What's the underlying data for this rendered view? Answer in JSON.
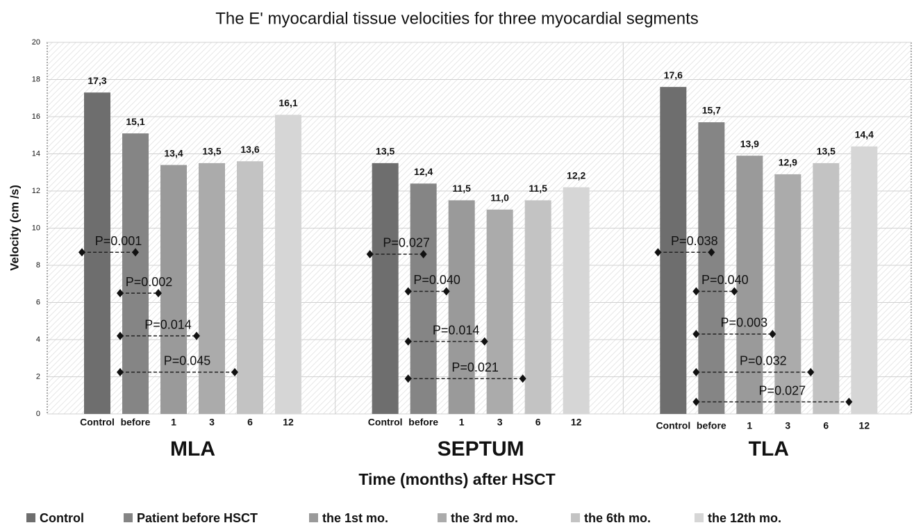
{
  "chart_data": {
    "type": "bar",
    "title": "The E' myocardial tissue velocities for three myocardial segments",
    "y_label": "Velocity (cm /s)",
    "x_label": "Time (months) after HSCT",
    "categories": [
      "MLA",
      "SEPTUM",
      "TLA"
    ],
    "bar_labels": [
      "Control",
      "before",
      "1",
      "3",
      "6",
      "12"
    ],
    "series": [
      {
        "name": "Control",
        "color": "#6e6e6e",
        "values": [
          17.3,
          13.5,
          17.6
        ],
        "value_labels": [
          "17,3",
          "13,5",
          "17,6"
        ]
      },
      {
        "name": "Patient before HSCT",
        "color": "#858585",
        "values": [
          15.1,
          12.4,
          15.7
        ],
        "value_labels": [
          "15,1",
          "12,4",
          "15,7"
        ]
      },
      {
        "name": "the 1st mo.",
        "color": "#9a9a9a",
        "values": [
          13.4,
          11.5,
          13.9
        ],
        "value_labels": [
          "13,4",
          "11,5",
          "13,9"
        ]
      },
      {
        "name": "the 3rd mo.",
        "color": "#ababab",
        "values": [
          13.5,
          11.0,
          12.9
        ],
        "value_labels": [
          "13,5",
          "11,0",
          "12,9"
        ]
      },
      {
        "name": "the 6th mo.",
        "color": "#c3c3c3",
        "values": [
          13.6,
          11.5,
          13.5
        ],
        "value_labels": [
          "13,6",
          "11,5",
          "13,5"
        ]
      },
      {
        "name": "the 12th mo.",
        "color": "#d6d6d6",
        "values": [
          16.1,
          12.2,
          14.4
        ],
        "value_labels": [
          "16,1",
          "12,2",
          "14,4"
        ]
      }
    ],
    "annotations": [
      {
        "text": "P=0.001",
        "group": "MLA",
        "from": "Control",
        "to": "before",
        "y": 8.7
      },
      {
        "text": "P=0.002",
        "group": "MLA",
        "from": "before",
        "to": "1",
        "y": 6.5
      },
      {
        "text": "P=0.014",
        "group": "MLA",
        "from": "before",
        "to": "3",
        "y": 4.2
      },
      {
        "text": "P=0.045",
        "group": "MLA",
        "from": "before",
        "to": "6",
        "y": 2.25
      },
      {
        "text": "P=0.027",
        "group": "SEPTUM",
        "from": "Control",
        "to": "before",
        "y": 8.6
      },
      {
        "text": "P=0.040",
        "group": "SEPTUM",
        "from": "before",
        "to": "1",
        "y": 6.6
      },
      {
        "text": "P=0.014",
        "group": "SEPTUM",
        "from": "before",
        "to": "3",
        "y": 3.9
      },
      {
        "text": "P=0.021",
        "group": "SEPTUM",
        "from": "before",
        "to": "6",
        "y": 1.9
      },
      {
        "text": "P=0.038",
        "group": "TLA",
        "from": "Control",
        "to": "before",
        "y": 8.7
      },
      {
        "text": "P=0.040",
        "group": "TLA",
        "from": "before",
        "to": "1",
        "y": 6.6
      },
      {
        "text": "P=0.003",
        "group": "TLA",
        "from": "before",
        "to": "3",
        "y": 4.3
      },
      {
        "text": "P=0.032",
        "group": "TLA",
        "from": "before",
        "to": "6",
        "y": 2.25
      },
      {
        "text": "P=0.027",
        "group": "TLA",
        "from": "before",
        "to": "12",
        "y": 0.65
      }
    ],
    "ylim": [
      0,
      20
    ],
    "yticks": [
      0,
      2,
      4,
      6,
      8,
      10,
      12,
      14,
      16,
      18,
      20
    ],
    "grid": true
  }
}
